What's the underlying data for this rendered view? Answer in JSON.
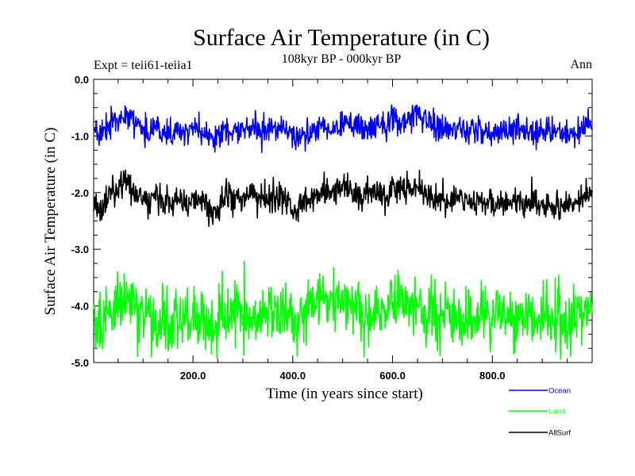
{
  "chart_data": {
    "type": "line",
    "title": "Surface Air Temperature (in C)",
    "subtitle": "108kyr BP - 000kyr BP",
    "expt_label": "Expt = teii61-teiia1",
    "season_label": "Ann",
    "xlabel": "Time (in years since start)",
    "ylabel": "Surface Air Temperature (in C)",
    "xlim": [
      1,
      1000
    ],
    "ylim": [
      -5.0,
      0.0
    ],
    "xticks": [
      200,
      400,
      600,
      800
    ],
    "xtick_labels": [
      "200.0",
      "400.0",
      "600.0",
      "800.0"
    ],
    "yticks": [
      0.0,
      -1.0,
      -2.0,
      -3.0,
      -4.0,
      -5.0
    ],
    "ytick_labels": [
      "0.0",
      "-1.0",
      "-2.0",
      "-3.0",
      "-4.0",
      "-5.0"
    ],
    "grid": false,
    "legend_position": "bottom-right, outside plot",
    "x_resolution": 10,
    "series": [
      {
        "name": "Ocean",
        "color": "#0000ff",
        "values": [
          -0.85,
          -1.0,
          -0.95,
          -0.8,
          -0.7,
          -0.75,
          -0.6,
          -0.62,
          -0.72,
          -0.8,
          -0.9,
          -0.95,
          -0.85,
          -0.88,
          -0.95,
          -0.98,
          -0.95,
          -0.9,
          -0.92,
          -0.95,
          -0.85,
          -0.95,
          -0.92,
          -1.0,
          -1.1,
          -1.05,
          -0.9,
          -0.95,
          -0.92,
          -0.88,
          -0.9,
          -0.85,
          -0.9,
          -0.9,
          -0.95,
          -0.9,
          -0.88,
          -0.85,
          -0.9,
          -0.95,
          -1.05,
          -1.1,
          -1.0,
          -0.95,
          -0.9,
          -0.85,
          -0.8,
          -0.85,
          -0.82,
          -0.78,
          -0.75,
          -0.8,
          -0.85,
          -0.8,
          -0.9,
          -0.85,
          -0.8,
          -0.75,
          -0.78,
          -0.85,
          -0.65,
          -0.7,
          -0.75,
          -0.7,
          -0.62,
          -0.6,
          -0.7,
          -0.75,
          -0.8,
          -0.85,
          -0.9,
          -0.92,
          -0.88,
          -0.85,
          -0.9,
          -0.92,
          -0.95,
          -0.9,
          -0.92,
          -0.95,
          -0.92,
          -0.88,
          -0.9,
          -0.92,
          -0.95,
          -0.9,
          -0.92,
          -0.88,
          -0.92,
          -0.95,
          -0.92,
          -0.9,
          -0.95,
          -0.92,
          -0.98,
          -0.95,
          -0.92,
          -0.9,
          -0.85,
          -0.8
        ],
        "min": -1.35,
        "max": -0.45
      },
      {
        "name": "Land",
        "color": "#00ff00",
        "values": [
          -4.3,
          -4.2,
          -4.35,
          -4.1,
          -4.0,
          -3.95,
          -3.85,
          -3.9,
          -4.05,
          -4.15,
          -4.2,
          -4.15,
          -4.25,
          -4.3,
          -4.25,
          -4.35,
          -4.2,
          -4.25,
          -4.2,
          -4.15,
          -4.2,
          -4.3,
          -4.25,
          -4.4,
          -4.35,
          -4.3,
          -4.1,
          -4.05,
          -4.15,
          -4.2,
          -4.25,
          -4.2,
          -4.15,
          -4.25,
          -4.2,
          -4.15,
          -4.2,
          -4.1,
          -4.15,
          -4.2,
          -4.3,
          -4.35,
          -4.1,
          -4.0,
          -4.05,
          -4.0,
          -3.9,
          -4.0,
          -3.85,
          -3.9,
          -3.95,
          -4.0,
          -4.1,
          -4.05,
          -4.15,
          -4.2,
          -4.1,
          -4.05,
          -4.1,
          -4.15,
          -4.0,
          -3.9,
          -3.95,
          -4.05,
          -4.0,
          -3.95,
          -4.1,
          -4.2,
          -4.15,
          -4.25,
          -4.2,
          -4.15,
          -4.25,
          -4.3,
          -4.2,
          -4.15,
          -4.25,
          -4.2,
          -4.15,
          -4.2,
          -4.25,
          -4.2,
          -4.15,
          -4.2,
          -4.25,
          -4.2,
          -4.15,
          -4.2,
          -4.25,
          -4.3,
          -4.2,
          -4.15,
          -4.25,
          -4.3,
          -4.35,
          -4.2,
          -4.25,
          -4.2,
          -4.1,
          -4.0
        ],
        "min": -5.0,
        "max": -3.2
      },
      {
        "name": "AllSurf",
        "color": "#000000",
        "values": [
          -2.2,
          -2.3,
          -2.25,
          -2.1,
          -2.0,
          -1.95,
          -1.8,
          -1.85,
          -1.95,
          -2.05,
          -2.1,
          -2.15,
          -2.05,
          -2.1,
          -2.15,
          -2.2,
          -2.15,
          -2.1,
          -2.15,
          -2.2,
          -2.1,
          -2.2,
          -2.15,
          -2.3,
          -2.35,
          -2.3,
          -2.1,
          -2.05,
          -2.15,
          -2.1,
          -2.1,
          -2.05,
          -2.1,
          -2.15,
          -2.2,
          -2.1,
          -2.1,
          -2.05,
          -2.1,
          -2.15,
          -2.3,
          -2.35,
          -2.2,
          -2.1,
          -2.05,
          -2.0,
          -1.95,
          -2.0,
          -1.95,
          -1.9,
          -1.9,
          -1.95,
          -2.05,
          -2.0,
          -2.1,
          -2.05,
          -2.0,
          -1.95,
          -2.0,
          -2.05,
          -1.9,
          -1.85,
          -1.9,
          -1.95,
          -1.85,
          -1.85,
          -1.95,
          -2.05,
          -2.05,
          -2.1,
          -2.15,
          -2.15,
          -2.1,
          -2.1,
          -2.15,
          -2.15,
          -2.2,
          -2.15,
          -2.15,
          -2.2,
          -2.2,
          -2.15,
          -2.15,
          -2.2,
          -2.2,
          -2.15,
          -2.2,
          -2.15,
          -2.2,
          -2.25,
          -2.2,
          -2.15,
          -2.2,
          -2.2,
          -2.25,
          -2.2,
          -2.2,
          -2.15,
          -2.1,
          -2.0
        ],
        "min": -2.6,
        "max": -1.6
      }
    ]
  }
}
